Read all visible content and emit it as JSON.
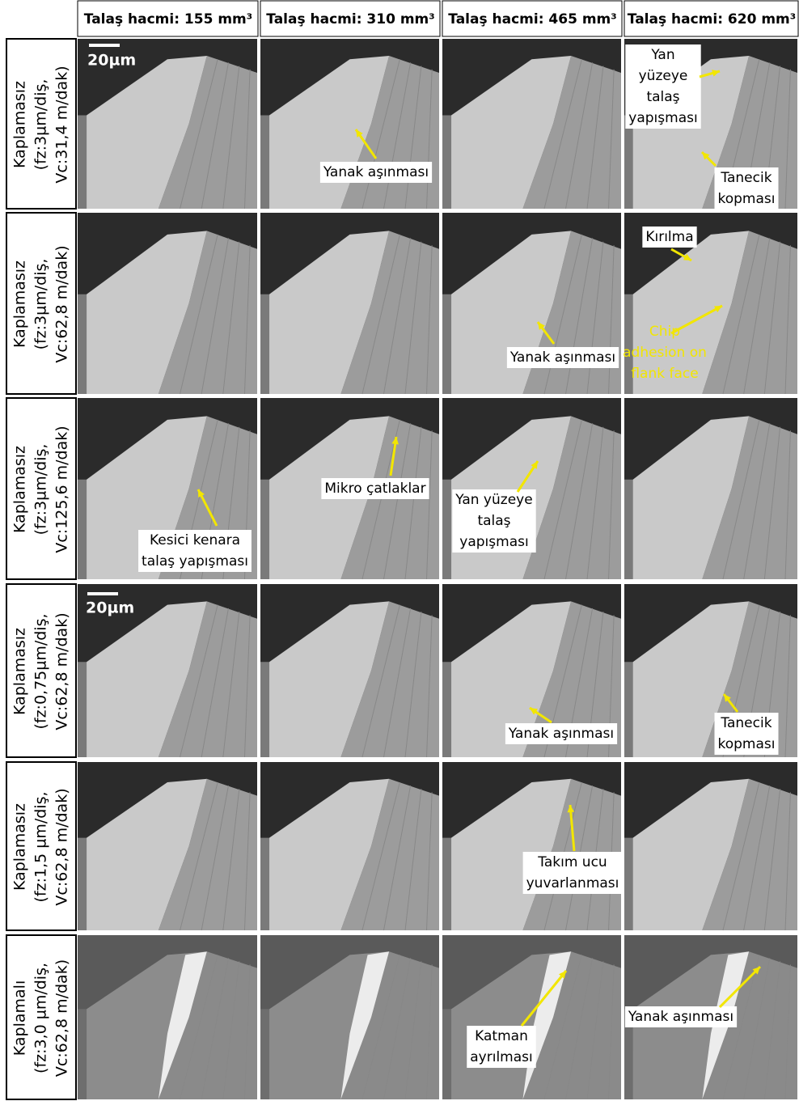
{
  "columns": [
    "Talaş hacmi: 155 mm³",
    "Talaş hacmi: 310 mm³",
    "Talaş hacmi: 465 mm³",
    "Talaş hacmi: 620 mm³"
  ],
  "scale_bars": [
    "20µm",
    "20µm"
  ],
  "rows": [
    {
      "label": [
        "Kaplamasız",
        "(fz:3µm/diş,",
        "Vc:31,4 m/dak)"
      ],
      "annotations": [
        [
          "Yanak aşınması"
        ],
        [
          "Yan",
          "yüzeye",
          "talaş",
          "yapışması"
        ],
        [
          "Tanecik",
          "kopması"
        ]
      ]
    },
    {
      "label": [
        "Kaplamasız",
        "(fz:3µm/diş,",
        "Vc:62,8 m/dak)"
      ],
      "annotations": [
        [
          "Yanak aşınması"
        ],
        [
          "Kırılma"
        ],
        [
          "Chip",
          "adhesion on",
          "flank face"
        ]
      ]
    },
    {
      "label": [
        "Kaplamasız",
        "(fz:3µm/diş,",
        "Vc:125,6 m/dak)"
      ],
      "annotations": [
        [
          "Kesici kenara",
          "talaş yapışması"
        ],
        [
          "Mikro çatlaklar"
        ],
        [
          "Yan yüzeye",
          "talaş",
          "yapışması"
        ]
      ]
    },
    {
      "label": [
        "Kaplamasız",
        "(fz:0,75µm/diş,",
        "Vc:62,8 m/dak)"
      ],
      "annotations": [
        [
          "Yanak aşınması"
        ],
        [
          "Tanecik",
          "kopması"
        ]
      ]
    },
    {
      "label": [
        "Kaplamasız",
        "(fz:1,5 µm/diş,",
        "Vc:62,8 m/dak)"
      ],
      "annotations": [
        [
          "Takım ucu",
          "yuvarlanması"
        ]
      ]
    },
    {
      "label": [
        "Kaplamalı",
        "(fz:3,0 µm/diş,",
        "Vc:62,8 m/dak)"
      ],
      "annotations": [
        [
          "Katman",
          "ayrılması"
        ],
        [
          "Yanak aşınması"
        ]
      ]
    }
  ]
}
